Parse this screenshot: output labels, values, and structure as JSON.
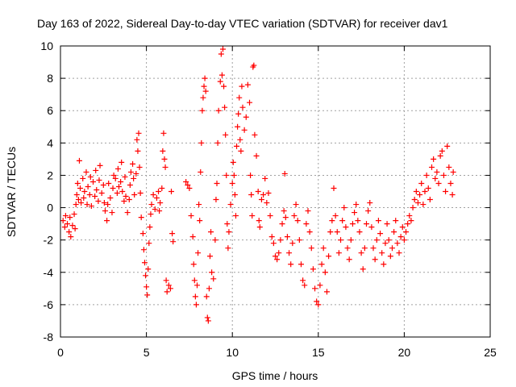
{
  "chart_data": {
    "type": "scatter",
    "title": "Day 163 of 2022, Sidereal Day-to-day VTEC variation (SDTVAR) for receiver dav1",
    "xlabel": "GPS time / hours",
    "ylabel": "SDTVAR / TECUs",
    "xlim": [
      0,
      25
    ],
    "ylim": [
      -8,
      10
    ],
    "x_ticks": [
      0,
      5,
      10,
      15,
      20,
      25
    ],
    "y_ticks": [
      -8,
      -6,
      -4,
      -2,
      0,
      2,
      4,
      6,
      8,
      10
    ],
    "grid": true,
    "marker": "+",
    "series": [
      {
        "name": "dav1",
        "color": "#ff0000",
        "note": "dense points; x,y pairs estimated (hours, TECU)",
        "points": [
          [
            0.15,
            -0.8
          ],
          [
            0.25,
            -1.2
          ],
          [
            0.3,
            -0.5
          ],
          [
            0.4,
            -1.0
          ],
          [
            0.5,
            -1.5
          ],
          [
            0.55,
            -0.6
          ],
          [
            0.6,
            -1.8
          ],
          [
            0.7,
            -1.1
          ],
          [
            0.8,
            -0.4
          ],
          [
            0.85,
            -1.3
          ],
          [
            0.9,
            0.2
          ],
          [
            0.95,
            0.8
          ],
          [
            1.0,
            1.5
          ],
          [
            1.05,
            0.5
          ],
          [
            1.1,
            2.9
          ],
          [
            1.15,
            1.2
          ],
          [
            1.2,
            0.3
          ],
          [
            1.3,
            1.8
          ],
          [
            1.35,
            0.6
          ],
          [
            1.4,
            1.0
          ],
          [
            1.5,
            2.2
          ],
          [
            1.55,
            0.2
          ],
          [
            1.6,
            1.3
          ],
          [
            1.7,
            0.8
          ],
          [
            1.75,
            1.9
          ],
          [
            1.8,
            0.1
          ],
          [
            1.9,
            1.6
          ],
          [
            2.0,
            0.7
          ],
          [
            2.05,
            2.3
          ],
          [
            2.1,
            1.1
          ],
          [
            2.2,
            0.4
          ],
          [
            2.25,
            1.7
          ],
          [
            2.3,
            2.6
          ],
          [
            2.4,
            0.9
          ],
          [
            2.5,
            1.4
          ],
          [
            2.55,
            0.3
          ],
          [
            2.6,
            -0.2
          ],
          [
            2.7,
            -0.8
          ],
          [
            2.75,
            0.2
          ],
          [
            2.8,
            1.5
          ],
          [
            2.9,
            0.6
          ],
          [
            3.0,
            -0.3
          ],
          [
            3.05,
            1.2
          ],
          [
            3.1,
            2.0
          ],
          [
            3.2,
            1.8
          ],
          [
            3.3,
            0.9
          ],
          [
            3.35,
            2.4
          ],
          [
            3.4,
            1.3
          ],
          [
            3.5,
            1.6
          ],
          [
            3.55,
            2.8
          ],
          [
            3.6,
            1.0
          ],
          [
            3.7,
            0.4
          ],
          [
            3.75,
            1.9
          ],
          [
            3.8,
            0.7
          ],
          [
            3.9,
            -0.3
          ],
          [
            4.0,
            0.5
          ],
          [
            4.05,
            1.4
          ],
          [
            4.1,
            2.2
          ],
          [
            4.2,
            2.7
          ],
          [
            4.25,
            1.8
          ],
          [
            4.3,
            0.8
          ],
          [
            4.4,
            2.1
          ],
          [
            4.45,
            4.2
          ],
          [
            4.5,
            3.5
          ],
          [
            4.55,
            4.6
          ],
          [
            4.6,
            2.5
          ],
          [
            4.65,
            0.9
          ],
          [
            4.7,
            -0.6
          ],
          [
            4.8,
            -1.6
          ],
          [
            4.85,
            -2.6
          ],
          [
            4.9,
            -3.4
          ],
          [
            4.95,
            -4.2
          ],
          [
            5.0,
            -4.9
          ],
          [
            5.05,
            -5.4
          ],
          [
            5.1,
            -3.8
          ],
          [
            5.15,
            -2.2
          ],
          [
            5.2,
            -1.2
          ],
          [
            5.25,
            -0.4
          ],
          [
            5.3,
            0.2
          ],
          [
            5.4,
            0.8
          ],
          [
            5.5,
            -0.1
          ],
          [
            5.6,
            0.6
          ],
          [
            5.7,
            1.0
          ],
          [
            5.75,
            -0.2
          ],
          [
            5.8,
            0.3
          ],
          [
            5.9,
            1.2
          ],
          [
            5.95,
            3.5
          ],
          [
            6.0,
            4.6
          ],
          [
            6.05,
            3.0
          ],
          [
            6.1,
            2.5
          ],
          [
            6.15,
            -4.5
          ],
          [
            6.2,
            -5.2
          ],
          [
            6.3,
            -4.8
          ],
          [
            6.4,
            -5.0
          ],
          [
            6.45,
            1.0
          ],
          [
            6.5,
            -1.6
          ],
          [
            6.55,
            -2.1
          ],
          [
            7.3,
            1.6
          ],
          [
            7.4,
            1.4
          ],
          [
            7.5,
            1.2
          ],
          [
            7.6,
            -0.5
          ],
          [
            7.7,
            -1.8
          ],
          [
            7.75,
            -3.5
          ],
          [
            7.8,
            -4.5
          ],
          [
            7.85,
            -5.5
          ],
          [
            7.9,
            -6.0
          ],
          [
            7.95,
            -4.8
          ],
          [
            8.0,
            -2.8
          ],
          [
            8.05,
            0.2
          ],
          [
            8.1,
            -0.8
          ],
          [
            8.15,
            2.2
          ],
          [
            8.2,
            4.0
          ],
          [
            8.25,
            6.0
          ],
          [
            8.3,
            6.8
          ],
          [
            8.35,
            7.5
          ],
          [
            8.4,
            8.0
          ],
          [
            8.45,
            7.2
          ],
          [
            8.5,
            -5.5
          ],
          [
            8.55,
            -6.8
          ],
          [
            8.6,
            -7.0
          ],
          [
            8.65,
            -5.0
          ],
          [
            8.7,
            -3.0
          ],
          [
            8.75,
            -1.5
          ],
          [
            8.8,
            -4.0
          ],
          [
            8.9,
            -4.4
          ],
          [
            9.0,
            -2.0
          ],
          [
            9.05,
            0.5
          ],
          [
            9.1,
            1.5
          ],
          [
            9.15,
            4.0
          ],
          [
            9.2,
            6.0
          ],
          [
            9.3,
            7.8
          ],
          [
            9.35,
            9.5
          ],
          [
            9.4,
            8.2
          ],
          [
            9.45,
            9.8
          ],
          [
            9.5,
            7.5
          ],
          [
            9.55,
            6.2
          ],
          [
            9.6,
            4.5
          ],
          [
            9.65,
            2.0
          ],
          [
            9.7,
            -1.0
          ],
          [
            9.75,
            -2.5
          ],
          [
            9.8,
            -1.5
          ],
          [
            9.9,
            0.2
          ],
          [
            10.0,
            1.5
          ],
          [
            10.05,
            2.8
          ],
          [
            10.1,
            2.0
          ],
          [
            10.15,
            0.8
          ],
          [
            10.2,
            -0.5
          ],
          [
            10.25,
            3.8
          ],
          [
            10.3,
            5.0
          ],
          [
            10.35,
            5.8
          ],
          [
            10.4,
            6.8
          ],
          [
            10.45,
            4.2
          ],
          [
            10.5,
            3.5
          ],
          [
            10.55,
            7.5
          ],
          [
            10.6,
            6.2
          ],
          [
            10.7,
            4.8
          ],
          [
            10.8,
            5.6
          ],
          [
            10.9,
            7.6
          ],
          [
            11.0,
            6.5
          ],
          [
            11.05,
            2.0
          ],
          [
            11.1,
            0.8
          ],
          [
            11.15,
            -0.5
          ],
          [
            11.2,
            8.7
          ],
          [
            11.25,
            8.8
          ],
          [
            11.3,
            4.5
          ],
          [
            11.4,
            3.2
          ],
          [
            11.5,
            1.0
          ],
          [
            11.55,
            -0.8
          ],
          [
            11.6,
            -1.2
          ],
          [
            11.7,
            0.5
          ],
          [
            11.8,
            0.8
          ],
          [
            11.9,
            1.8
          ],
          [
            12.0,
            0.3
          ],
          [
            12.1,
            0.9
          ],
          [
            12.2,
            -0.5
          ],
          [
            12.3,
            -1.8
          ],
          [
            12.4,
            -2.2
          ],
          [
            12.5,
            -3.0
          ],
          [
            12.6,
            -3.2
          ],
          [
            12.7,
            -2.8
          ],
          [
            12.8,
            -2.0
          ],
          [
            12.9,
            -1.0
          ],
          [
            13.0,
            -0.2
          ],
          [
            13.05,
            2.1
          ],
          [
            13.1,
            -0.6
          ],
          [
            13.2,
            -1.8
          ],
          [
            13.3,
            -2.8
          ],
          [
            13.4,
            -3.5
          ],
          [
            13.5,
            -2.2
          ],
          [
            13.6,
            -0.5
          ],
          [
            13.7,
            0.2
          ],
          [
            13.8,
            -0.8
          ],
          [
            13.9,
            -2.0
          ],
          [
            14.0,
            -3.5
          ],
          [
            14.1,
            -4.5
          ],
          [
            14.2,
            -4.8
          ],
          [
            14.3,
            -1.0
          ],
          [
            14.4,
            -0.2
          ],
          [
            14.5,
            -1.5
          ],
          [
            14.6,
            -2.5
          ],
          [
            14.7,
            -3.8
          ],
          [
            14.8,
            -5.0
          ],
          [
            14.9,
            -5.8
          ],
          [
            15.0,
            -6.0
          ],
          [
            15.1,
            -4.8
          ],
          [
            15.2,
            -3.5
          ],
          [
            15.3,
            -2.5
          ],
          [
            15.4,
            -4.0
          ],
          [
            15.5,
            -5.2
          ],
          [
            15.6,
            -3.0
          ],
          [
            15.7,
            -1.5
          ],
          [
            15.8,
            -0.8
          ],
          [
            15.9,
            1.2
          ],
          [
            16.0,
            -0.5
          ],
          [
            16.1,
            -1.5
          ],
          [
            16.2,
            -2.8
          ],
          [
            16.3,
            -2.0
          ],
          [
            16.4,
            -0.8
          ],
          [
            16.5,
            0.0
          ],
          [
            16.6,
            -1.2
          ],
          [
            16.7,
            -2.5
          ],
          [
            16.8,
            -3.2
          ],
          [
            16.9,
            -2.0
          ],
          [
            17.0,
            -1.0
          ],
          [
            17.1,
            -0.3
          ],
          [
            17.2,
            0.2
          ],
          [
            17.3,
            -0.8
          ],
          [
            17.4,
            -1.5
          ],
          [
            17.5,
            -2.8
          ],
          [
            17.6,
            -3.8
          ],
          [
            17.7,
            -2.5
          ],
          [
            17.8,
            -1.0
          ],
          [
            17.9,
            -0.2
          ],
          [
            18.0,
            0.3
          ],
          [
            18.1,
            -1.2
          ],
          [
            18.2,
            -2.5
          ],
          [
            18.3,
            -3.2
          ],
          [
            18.4,
            -2.0
          ],
          [
            18.5,
            -0.8
          ],
          [
            18.6,
            -1.6
          ],
          [
            18.7,
            -2.8
          ],
          [
            18.8,
            -3.5
          ],
          [
            18.9,
            -2.2
          ],
          [
            19.0,
            -1.0
          ],
          [
            19.1,
            -2.0
          ],
          [
            19.2,
            -3.0
          ],
          [
            19.3,
            -2.5
          ],
          [
            19.4,
            -1.5
          ],
          [
            19.5,
            -0.8
          ],
          [
            19.6,
            -2.2
          ],
          [
            19.7,
            -2.8
          ],
          [
            19.8,
            -1.8
          ],
          [
            19.9,
            -1.2
          ],
          [
            20.0,
            -2.0
          ],
          [
            20.1,
            -1.5
          ],
          [
            20.2,
            -1.0
          ],
          [
            20.3,
            -0.5
          ],
          [
            20.4,
            -0.8
          ],
          [
            20.5,
            0.0
          ],
          [
            20.6,
            0.5
          ],
          [
            20.7,
            1.0
          ],
          [
            20.8,
            0.3
          ],
          [
            20.9,
            0.8
          ],
          [
            21.0,
            1.5
          ],
          [
            21.1,
            0.2
          ],
          [
            21.2,
            1.0
          ],
          [
            21.3,
            2.0
          ],
          [
            21.4,
            1.2
          ],
          [
            21.5,
            0.5
          ],
          [
            21.6,
            2.5
          ],
          [
            21.7,
            3.0
          ],
          [
            21.8,
            1.8
          ],
          [
            21.9,
            2.2
          ],
          [
            22.0,
            1.5
          ],
          [
            22.1,
            3.2
          ],
          [
            22.2,
            3.5
          ],
          [
            22.3,
            2.0
          ],
          [
            22.4,
            1.0
          ],
          [
            22.5,
            3.8
          ],
          [
            22.6,
            2.5
          ],
          [
            22.7,
            1.5
          ],
          [
            22.8,
            0.8
          ],
          [
            22.85,
            2.2
          ]
        ]
      }
    ]
  }
}
